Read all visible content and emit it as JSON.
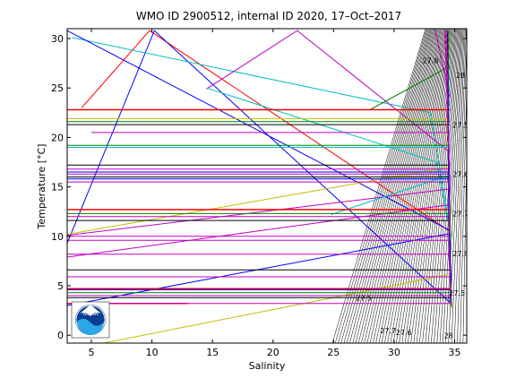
{
  "chart_data": {
    "type": "line",
    "title": "WMO ID 2900512, internal ID 2020, 17–Oct–2017",
    "xlabel": "Salinity",
    "ylabel": "Temperature [°C]",
    "xlim": [
      3,
      36
    ],
    "ylim": [
      -0.8,
      31
    ],
    "xticks": [
      "5",
      "10",
      "15",
      "20",
      "25",
      "30",
      "35"
    ],
    "yticks": [
      "0",
      "5",
      "10",
      "15",
      "20",
      "25",
      "30"
    ],
    "grid": false,
    "density_labels": [
      "27.5",
      "27.6",
      "27.7",
      "27.8",
      "28"
    ],
    "logo_text": "NOAA",
    "series": [
      {
        "color": "#ff0000",
        "x": [
          4.2,
          9.8,
          34.6,
          34.7
        ],
        "y": [
          23,
          30.8,
          10.5,
          4
        ]
      },
      {
        "color": "#0000ff",
        "x": [
          3.0,
          10.2,
          34.7
        ],
        "y": [
          9.3,
          30.8,
          3.2
        ]
      },
      {
        "color": "#00bfbf",
        "x": [
          3.4,
          33.0,
          34.7
        ],
        "y": [
          30.1,
          22.5,
          10.0
        ]
      },
      {
        "color": "#bf00bf",
        "x": [
          14.5,
          22.0,
          34.6
        ],
        "y": [
          24.9,
          30.8,
          18.5
        ]
      },
      {
        "color": "#0000ff",
        "x": [
          3.0,
          34.6
        ],
        "y": [
          30.8,
          10.6
        ]
      },
      {
        "color": "#00bfbf",
        "x": [
          14.5,
          33.5,
          34.7
        ],
        "y": [
          25.0,
          17.5,
          10.0
        ]
      },
      {
        "color": "#bfbf00",
        "x": [
          6.0,
          25.0,
          34.7
        ],
        "y": [
          -0.8,
          3.8,
          6.2
        ]
      },
      {
        "color": "#bf00bf",
        "x": [
          3.0,
          34.7
        ],
        "y": [
          10.1,
          14.8
        ]
      },
      {
        "color": "#0000ff",
        "x": [
          3.0,
          34.7
        ],
        "y": [
          3.0,
          10.3
        ]
      },
      {
        "color": "#bf00bf",
        "x": [
          3.0,
          34.6
        ],
        "y": [
          7.9,
          13.2
        ]
      },
      {
        "color": "#008000",
        "x": [
          28.0,
          34.6
        ],
        "y": [
          22.8,
          27.2
        ]
      },
      {
        "color": "#bfbf00",
        "x": [
          3.0,
          34.6
        ],
        "y": [
          10.2,
          17.0
        ]
      },
      {
        "color": "#00bfbf",
        "x": [
          24.8,
          34.6
        ],
        "y": [
          12.2,
          16.2
        ]
      },
      {
        "color": "#bf00bf",
        "x": [
          33.4,
          34.6
        ],
        "y": [
          30.8,
          24.0
        ]
      },
      {
        "color": "#ff0000",
        "x": [
          3.0,
          34.6
        ],
        "y": [
          22.8,
          22.8
        ]
      },
      {
        "color": "#bfbf00",
        "x": [
          3.0,
          34.6
        ],
        "y": [
          21.9,
          21.9
        ]
      },
      {
        "color": "#008000",
        "x": [
          3.0,
          34.6
        ],
        "y": [
          21.6,
          21.6
        ]
      },
      {
        "color": "#000000",
        "x": [
          3.0,
          34.6
        ],
        "y": [
          21.3,
          21.3
        ]
      },
      {
        "color": "#bf00bf",
        "x": [
          5.0,
          34.6
        ],
        "y": [
          20.5,
          20.5
        ]
      },
      {
        "color": "#008000",
        "x": [
          3.0,
          34.6
        ],
        "y": [
          19.2,
          19.2
        ]
      },
      {
        "color": "#00bfbf",
        "x": [
          3.0,
          34.6
        ],
        "y": [
          19.0,
          19.0
        ]
      },
      {
        "color": "#000000",
        "x": [
          3.0,
          34.6
        ],
        "y": [
          17.2,
          17.2
        ]
      },
      {
        "color": "#bf00bf",
        "x": [
          3.0,
          34.6
        ],
        "y": [
          16.8,
          16.8
        ]
      },
      {
        "color": "#0000ff",
        "x": [
          3.0,
          34.6
        ],
        "y": [
          16.5,
          16.5
        ]
      },
      {
        "color": "#bf00bf",
        "x": [
          3.0,
          34.6
        ],
        "y": [
          16.3,
          16.3
        ]
      },
      {
        "color": "#000000",
        "x": [
          3.0,
          34.6
        ],
        "y": [
          16.0,
          16.0
        ]
      },
      {
        "color": "#0000ff",
        "x": [
          3.0,
          34.6
        ],
        "y": [
          15.8,
          15.8
        ]
      },
      {
        "color": "#bf00bf",
        "x": [
          3.0,
          34.6
        ],
        "y": [
          15.5,
          15.5
        ]
      },
      {
        "color": "#ff0000",
        "x": [
          3.0,
          34.6
        ],
        "y": [
          12.7,
          12.7
        ]
      },
      {
        "color": "#008000",
        "x": [
          3.0,
          34.6
        ],
        "y": [
          12.3,
          12.3
        ]
      },
      {
        "color": "#bf00bf",
        "x": [
          3.0,
          34.6
        ],
        "y": [
          12.0,
          12.0
        ]
      },
      {
        "color": "#000000",
        "x": [
          3.0,
          34.6
        ],
        "y": [
          11.6,
          11.6
        ]
      },
      {
        "color": "#bf00bf",
        "x": [
          3.0,
          34.6
        ],
        "y": [
          10.0,
          10.0
        ]
      },
      {
        "color": "#bf00bf",
        "x": [
          3.0,
          34.6
        ],
        "y": [
          9.6,
          9.6
        ]
      },
      {
        "color": "#bf00bf",
        "x": [
          3.0,
          34.6
        ],
        "y": [
          8.2,
          8.2
        ]
      },
      {
        "color": "#000000",
        "x": [
          3.0,
          34.6
        ],
        "y": [
          6.6,
          6.6
        ]
      },
      {
        "color": "#bf00bf",
        "x": [
          3.0,
          34.6
        ],
        "y": [
          5.9,
          5.9
        ]
      },
      {
        "color": "#ff0000",
        "x": [
          3.0,
          34.6
        ],
        "y": [
          4.7,
          4.7
        ]
      },
      {
        "color": "#0000ff",
        "x": [
          3.0,
          34.6
        ],
        "y": [
          4.6,
          4.6
        ]
      },
      {
        "color": "#008000",
        "x": [
          3.0,
          34.6
        ],
        "y": [
          4.3,
          4.3
        ]
      },
      {
        "color": "#bf00bf",
        "x": [
          3.0,
          34.6
        ],
        "y": [
          4.0,
          4.0
        ]
      },
      {
        "color": "#000000",
        "x": [
          3.0,
          34.6
        ],
        "y": [
          3.8,
          3.8
        ]
      },
      {
        "color": "#ff0000",
        "x": [
          3.0,
          13.0
        ],
        "y": [
          3.2,
          3.2
        ]
      },
      {
        "color": "#bf00bf",
        "x": [
          3.0,
          34.6
        ],
        "y": [
          3.2,
          3.2
        ]
      },
      {
        "color": "#ff0000",
        "x": [
          34.3,
          34.4,
          34.55,
          34.6,
          34.7
        ],
        "y": [
          30.8,
          22.0,
          15.0,
          8.0,
          3.0
        ]
      },
      {
        "color": "#008000",
        "x": [
          34.5,
          34.45,
          34.6,
          34.65,
          34.75
        ],
        "y": [
          30.8,
          21.0,
          14.0,
          7.0,
          2.8
        ]
      },
      {
        "color": "#0000ff",
        "x": [
          34.4,
          34.5,
          34.5,
          34.7,
          34.6
        ],
        "y": [
          30.8,
          20.0,
          12.0,
          6.0,
          3.4
        ]
      },
      {
        "color": "#bf00bf",
        "x": [
          34.2,
          34.4,
          34.6,
          34.5,
          34.7
        ],
        "y": [
          30.8,
          23.0,
          16.0,
          9.0,
          3.6
        ]
      }
    ]
  }
}
